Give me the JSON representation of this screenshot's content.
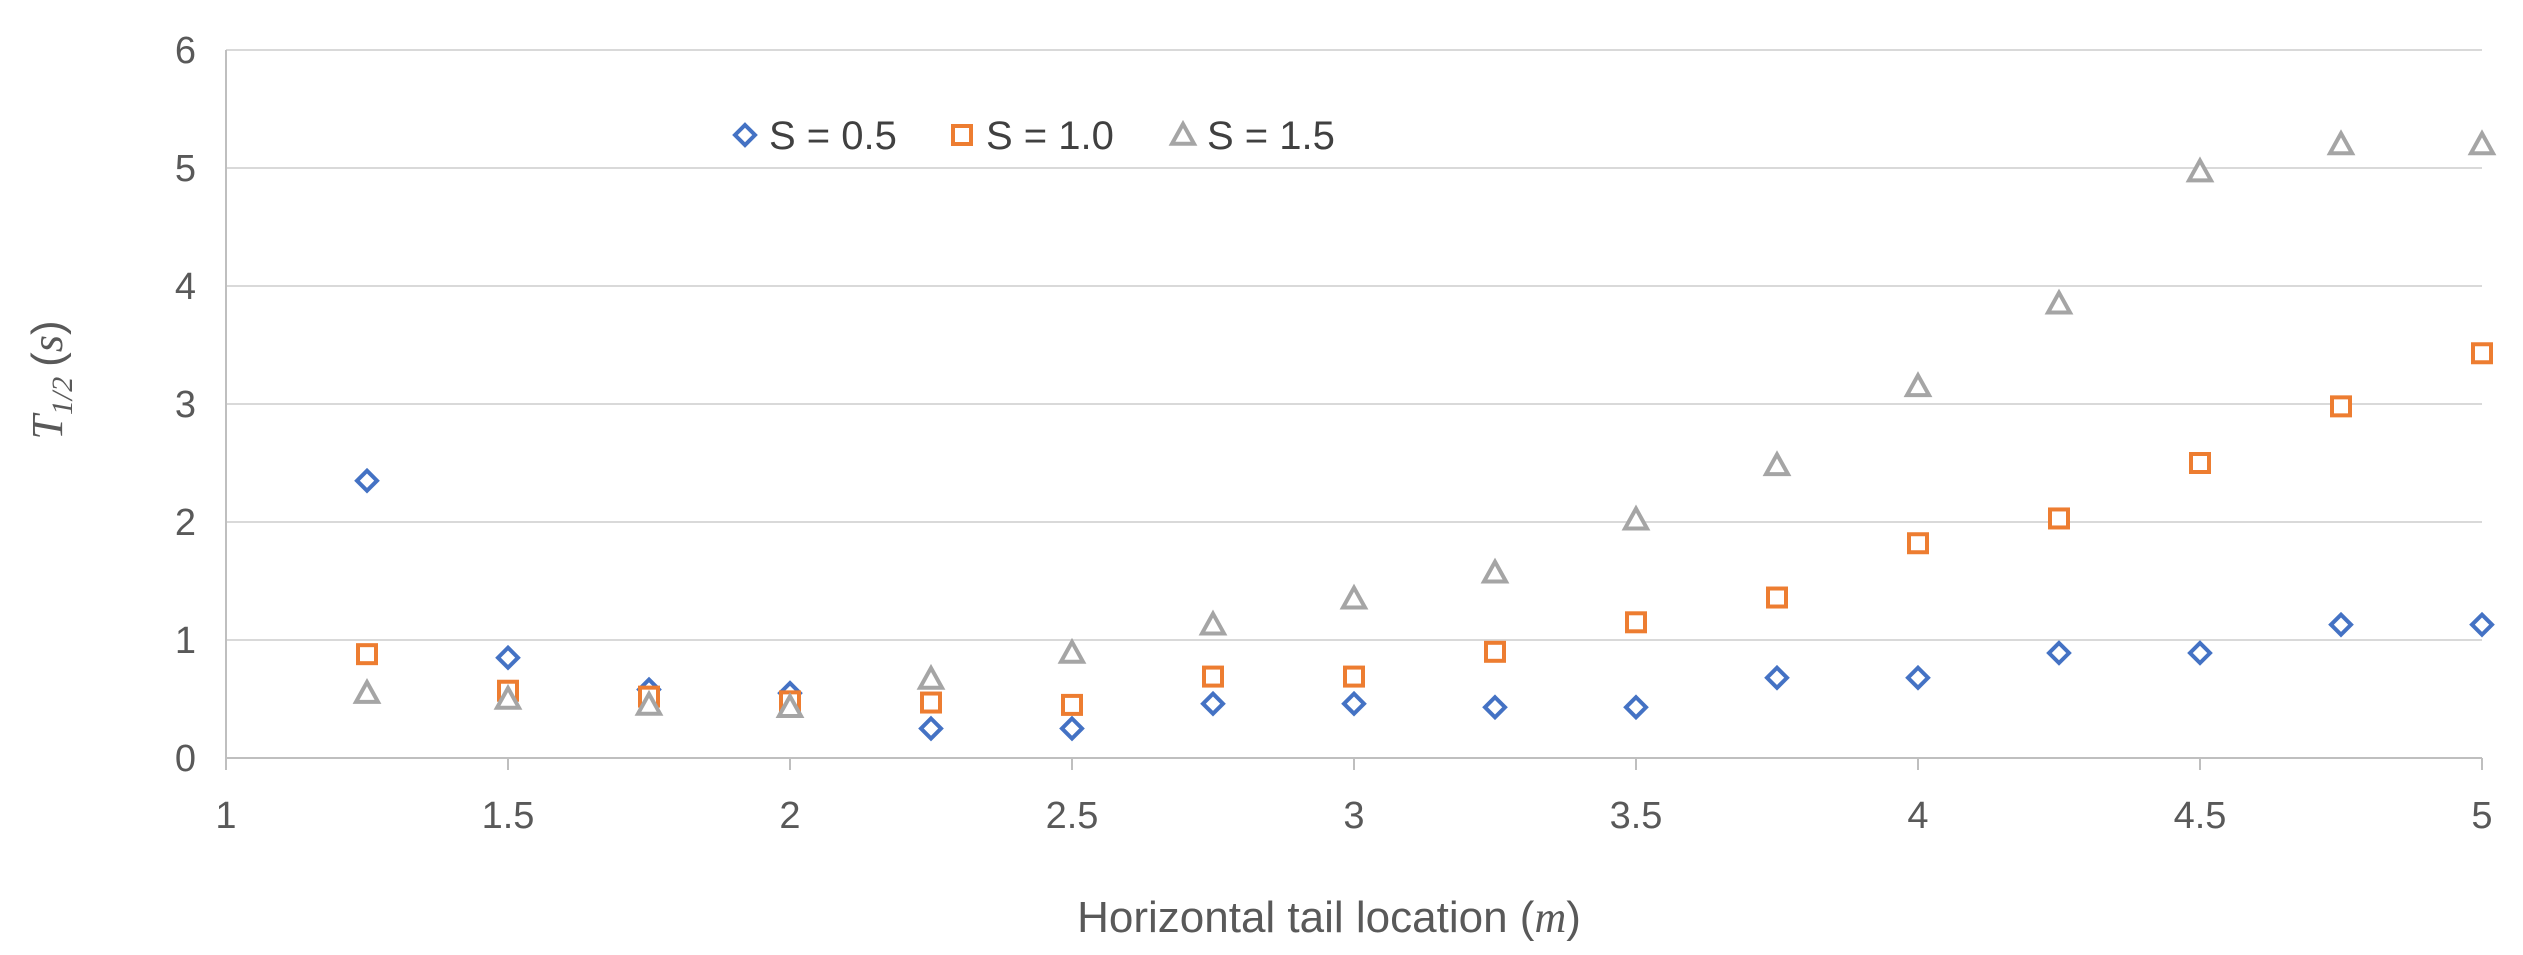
{
  "chart_data": {
    "type": "scatter",
    "title": "",
    "xlabel": {
      "text": "Horizontal tail location ",
      "unit_open": "(",
      "unit": "m",
      "unit_close": ")"
    },
    "ylabel": {
      "symbol": "T",
      "subscript": "1/2",
      "unit_open": "(",
      "unit": "s",
      "unit_close": ")"
    },
    "xlim": [
      1,
      5
    ],
    "ylim": [
      0,
      6
    ],
    "x_ticks": [
      "1",
      "1.5",
      "2",
      "2.5",
      "3",
      "3.5",
      "4",
      "4.5",
      "5"
    ],
    "y_ticks": [
      "0",
      "1",
      "2",
      "3",
      "4",
      "5",
      "6"
    ],
    "grid": "horizontal",
    "legend_position": "top",
    "x": [
      1.25,
      1.5,
      1.75,
      2.0,
      2.25,
      2.5,
      2.75,
      3.0,
      3.25,
      3.5,
      3.75,
      4.0,
      4.25,
      4.5,
      4.75,
      5.0
    ],
    "series": [
      {
        "name": "S = 0.5",
        "marker": "diamond",
        "color": "#4472C4",
        "values": [
          2.35,
          0.85,
          0.58,
          0.55,
          0.25,
          0.25,
          0.46,
          0.46,
          0.43,
          0.43,
          0.68,
          0.68,
          0.89,
          0.89,
          1.13,
          1.13
        ]
      },
      {
        "name": "S = 1.0",
        "marker": "square",
        "color": "#ED7D31",
        "values": [
          0.88,
          0.57,
          0.52,
          0.48,
          0.47,
          0.45,
          0.69,
          0.69,
          0.9,
          1.15,
          1.36,
          1.82,
          2.03,
          2.5,
          2.98,
          3.43
        ]
      },
      {
        "name": "S = 1.5",
        "marker": "triangle",
        "color": "#A5A5A5",
        "values": [
          0.55,
          0.5,
          0.45,
          0.43,
          0.67,
          0.89,
          1.13,
          1.35,
          1.57,
          2.02,
          2.48,
          3.15,
          3.85,
          4.97,
          5.2,
          5.2
        ]
      }
    ]
  }
}
